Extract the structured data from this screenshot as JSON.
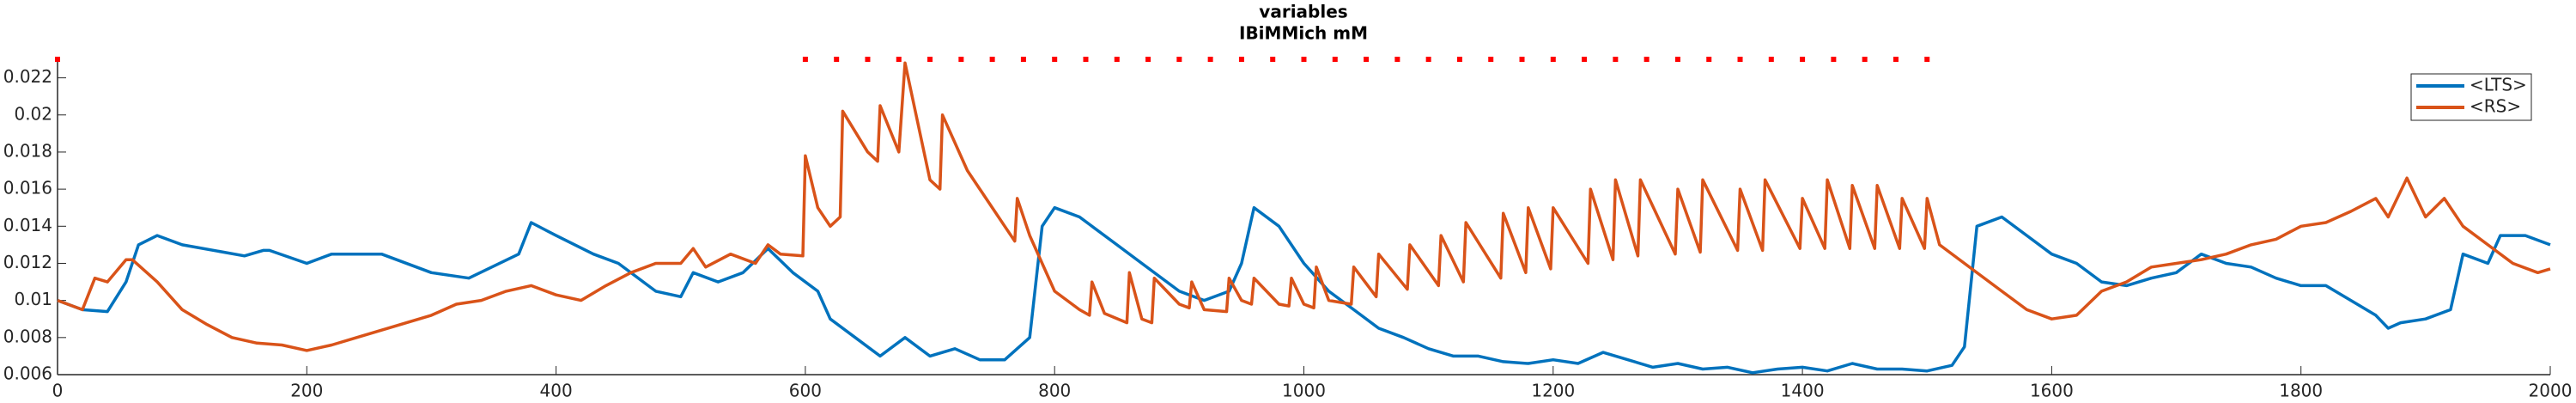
{
  "chart_data": {
    "type": "line",
    "title": "variables",
    "subtitle": "IBiMMich mM",
    "xlim": [
      0,
      2000
    ],
    "xticks": [
      0,
      200,
      400,
      600,
      800,
      1000,
      1200,
      1400,
      1600,
      1800,
      2000
    ],
    "ylim": [
      0.006,
      0.023
    ],
    "yticks": [
      0.006,
      0.008,
      0.01,
      0.012,
      0.014,
      0.016,
      0.018,
      0.02,
      0.022
    ],
    "legend": "northeast",
    "series": [
      {
        "name": "<LTS>",
        "color": "#0072bd",
        "x": [
          0,
          20,
          40,
          55,
          65,
          80,
          100,
          150,
          165,
          170,
          200,
          220,
          260,
          300,
          330,
          370,
          380,
          400,
          430,
          450,
          470,
          480,
          500,
          510,
          530,
          550,
          570,
          590,
          610,
          620,
          640,
          660,
          680,
          700,
          720,
          740,
          760,
          780,
          790,
          800,
          820,
          850,
          870,
          900,
          920,
          940,
          950,
          960,
          980,
          1000,
          1020,
          1040,
          1060,
          1080,
          1100,
          1120,
          1140,
          1160,
          1180,
          1200,
          1220,
          1240,
          1260,
          1280,
          1300,
          1320,
          1340,
          1360,
          1380,
          1400,
          1420,
          1440,
          1460,
          1480,
          1500,
          1520,
          1530,
          1540,
          1560,
          1580,
          1600,
          1620,
          1640,
          1660,
          1680,
          1700,
          1720,
          1740,
          1760,
          1780,
          1800,
          1820,
          1840,
          1860,
          1870,
          1880,
          1900,
          1920,
          1930,
          1950,
          1960,
          1980,
          2000
        ],
        "values": [
          0.01,
          0.0095,
          0.0094,
          0.011,
          0.013,
          0.0135,
          0.013,
          0.0124,
          0.0127,
          0.0127,
          0.012,
          0.0125,
          0.0125,
          0.0115,
          0.0112,
          0.0125,
          0.0142,
          0.0135,
          0.0125,
          0.012,
          0.011,
          0.0105,
          0.0102,
          0.0115,
          0.011,
          0.0115,
          0.0128,
          0.0115,
          0.0105,
          0.009,
          0.008,
          0.007,
          0.008,
          0.007,
          0.0074,
          0.0068,
          0.0068,
          0.008,
          0.014,
          0.015,
          0.0145,
          0.013,
          0.012,
          0.0105,
          0.01,
          0.0105,
          0.012,
          0.015,
          0.014,
          0.012,
          0.0105,
          0.0095,
          0.0085,
          0.008,
          0.0074,
          0.007,
          0.007,
          0.0067,
          0.0066,
          0.0068,
          0.0066,
          0.0072,
          0.0068,
          0.0064,
          0.0066,
          0.0063,
          0.0064,
          0.0061,
          0.0063,
          0.0064,
          0.0062,
          0.0066,
          0.0063,
          0.0063,
          0.0062,
          0.0065,
          0.0075,
          0.014,
          0.0145,
          0.0135,
          0.0125,
          0.012,
          0.011,
          0.0108,
          0.0112,
          0.0115,
          0.0125,
          0.012,
          0.0118,
          0.0112,
          0.0108,
          0.0108,
          0.01,
          0.0092,
          0.0085,
          0.0088,
          0.009,
          0.0095,
          0.0125,
          0.012,
          0.0135,
          0.0135,
          0.013
        ]
      },
      {
        "name": "<RS>",
        "color": "#d95319",
        "x": [
          0,
          20,
          30,
          40,
          55,
          60,
          80,
          100,
          120,
          140,
          160,
          180,
          200,
          220,
          240,
          260,
          280,
          300,
          320,
          340,
          360,
          380,
          400,
          420,
          440,
          460,
          480,
          500,
          510,
          520,
          540,
          560,
          570,
          580,
          598,
          600,
          610,
          620,
          628,
          630,
          650,
          658,
          660,
          675,
          680,
          700,
          708,
          710,
          730,
          740,
          760,
          768,
          770,
          780,
          800,
          820,
          828,
          830,
          840,
          858,
          860,
          870,
          878,
          880,
          900,
          908,
          910,
          920,
          938,
          940,
          950,
          958,
          960,
          980,
          988,
          990,
          1000,
          1008,
          1010,
          1020,
          1038,
          1040,
          1058,
          1060,
          1083,
          1085,
          1108,
          1110,
          1128,
          1130,
          1158,
          1160,
          1178,
          1180,
          1198,
          1200,
          1228,
          1230,
          1248,
          1250,
          1268,
          1270,
          1298,
          1300,
          1318,
          1320,
          1348,
          1350,
          1368,
          1370,
          1398,
          1400,
          1418,
          1420,
          1438,
          1440,
          1458,
          1460,
          1478,
          1480,
          1498,
          1500,
          1510,
          1530,
          1560,
          1580,
          1600,
          1620,
          1640,
          1660,
          1680,
          1700,
          1720,
          1740,
          1760,
          1780,
          1800,
          1820,
          1840,
          1860,
          1870,
          1885,
          1900,
          1915,
          1930,
          1950,
          1970,
          1990,
          2000
        ],
        "values": [
          0.01,
          0.0095,
          0.0112,
          0.011,
          0.0122,
          0.0122,
          0.011,
          0.0095,
          0.0087,
          0.008,
          0.0077,
          0.0076,
          0.0073,
          0.0076,
          0.008,
          0.0084,
          0.0088,
          0.0092,
          0.0098,
          0.01,
          0.0105,
          0.0108,
          0.0103,
          0.01,
          0.0108,
          0.0115,
          0.012,
          0.012,
          0.0128,
          0.0118,
          0.0125,
          0.012,
          0.013,
          0.0125,
          0.0124,
          0.0178,
          0.015,
          0.014,
          0.0145,
          0.0202,
          0.018,
          0.0175,
          0.0205,
          0.018,
          0.0228,
          0.0165,
          0.016,
          0.02,
          0.017,
          0.016,
          0.014,
          0.0132,
          0.0155,
          0.0135,
          0.0105,
          0.0095,
          0.0092,
          0.011,
          0.0093,
          0.0088,
          0.0115,
          0.009,
          0.0088,
          0.0112,
          0.0098,
          0.0096,
          0.011,
          0.0095,
          0.0094,
          0.0112,
          0.01,
          0.0098,
          0.0112,
          0.0098,
          0.0097,
          0.0112,
          0.0098,
          0.0096,
          0.0118,
          0.01,
          0.0098,
          0.0118,
          0.0102,
          0.0125,
          0.0106,
          0.013,
          0.0108,
          0.0135,
          0.011,
          0.0142,
          0.0112,
          0.0147,
          0.0115,
          0.015,
          0.0117,
          0.015,
          0.012,
          0.016,
          0.0122,
          0.0165,
          0.0124,
          0.0165,
          0.0125,
          0.016,
          0.0126,
          0.0165,
          0.0127,
          0.016,
          0.0127,
          0.0165,
          0.0128,
          0.0155,
          0.0128,
          0.0165,
          0.0128,
          0.0162,
          0.0128,
          0.0162,
          0.0128,
          0.0155,
          0.0128,
          0.0155,
          0.013,
          0.012,
          0.0105,
          0.0095,
          0.009,
          0.0092,
          0.0105,
          0.011,
          0.0118,
          0.012,
          0.0122,
          0.0125,
          0.013,
          0.0133,
          0.014,
          0.0142,
          0.0148,
          0.0155,
          0.0145,
          0.0166,
          0.0145,
          0.0155,
          0.014,
          0.013,
          0.012,
          0.0115,
          0.0117
        ]
      }
    ],
    "markers": {
      "color": "#ff0000",
      "x": [
        0,
        600,
        625,
        650,
        675,
        700,
        725,
        750,
        775,
        800,
        825,
        850,
        875,
        900,
        925,
        950,
        975,
        1000,
        1025,
        1050,
        1075,
        1100,
        1125,
        1150,
        1175,
        1200,
        1225,
        1250,
        1275,
        1300,
        1325,
        1350,
        1375,
        1400,
        1425,
        1450,
        1475,
        1500
      ],
      "values": [
        0.023,
        0.023,
        0.023,
        0.023,
        0.023,
        0.023,
        0.023,
        0.023,
        0.023,
        0.023,
        0.023,
        0.023,
        0.023,
        0.023,
        0.023,
        0.023,
        0.023,
        0.023,
        0.023,
        0.023,
        0.023,
        0.023,
        0.023,
        0.023,
        0.023,
        0.023,
        0.023,
        0.023,
        0.023,
        0.023,
        0.023,
        0.023,
        0.023,
        0.023,
        0.023,
        0.023,
        0.023,
        0.023
      ]
    }
  }
}
